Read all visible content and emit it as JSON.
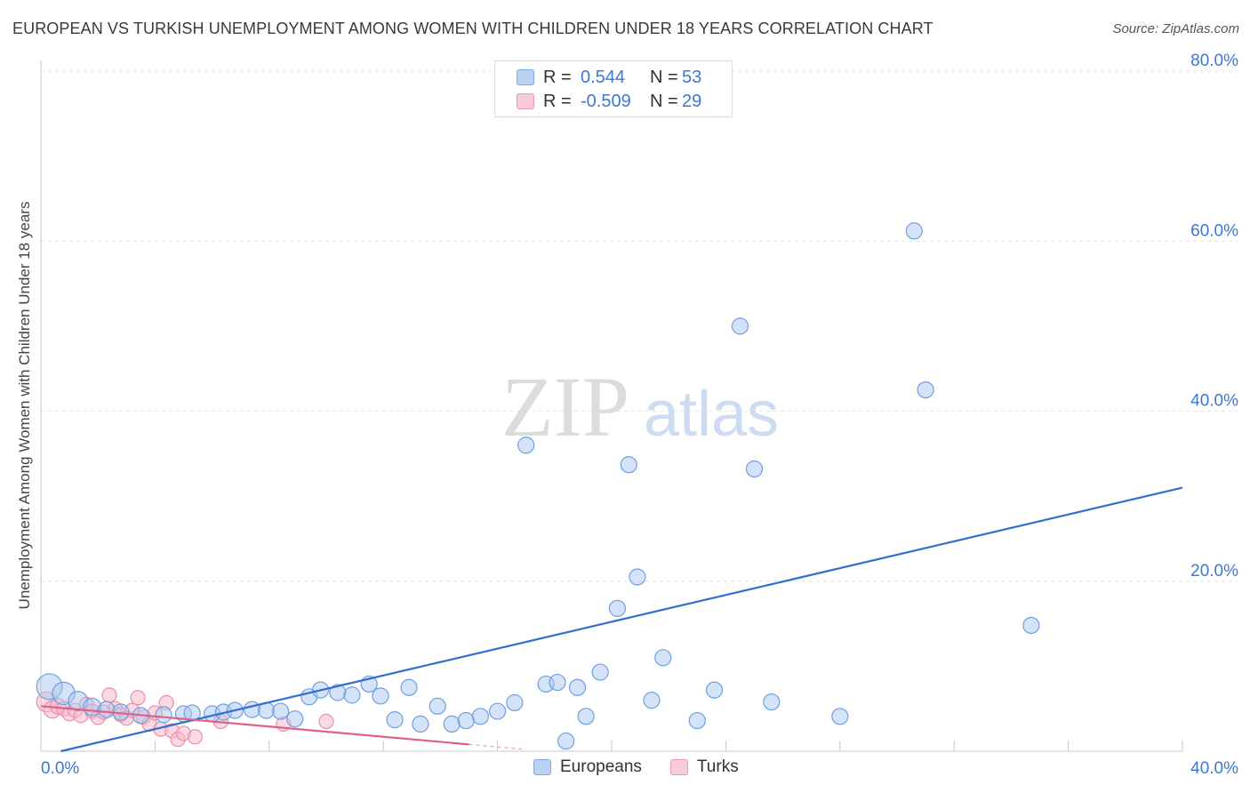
{
  "header": {
    "title": "EUROPEAN VS TURKISH UNEMPLOYMENT AMONG WOMEN WITH CHILDREN UNDER 18 YEARS CORRELATION CHART",
    "source": "Source: ZipAtlas.com"
  },
  "watermark": {
    "zip": "ZIP",
    "atlas": "atlas"
  },
  "legend_top": {
    "rows": [
      {
        "r_label": "R =",
        "r_value": "0.544",
        "n_label": "N =",
        "n_value": "53"
      },
      {
        "r_label": "R =",
        "r_value": "-0.509",
        "n_label": "N =",
        "n_value": "29"
      }
    ]
  },
  "legend_bottom": {
    "europeans": "Europeans",
    "turks": "Turks"
  },
  "colors": {
    "blue_fill": "#a9c8f0",
    "blue_stroke": "#6f9fe0",
    "blue_line": "#2f6fd0",
    "pink_fill": "#f6bccb",
    "pink_stroke": "#ea8fa9",
    "pink_line": "#e0608a",
    "axis_text": "#3a78d4",
    "grid": "#e3e3e3"
  },
  "chart_data": {
    "type": "scatter",
    "title": "EUROPEAN VS TURKISH UNEMPLOYMENT AMONG WOMEN WITH CHILDREN UNDER 18 YEARS CORRELATION CHART",
    "xlabel": "",
    "ylabel": "Unemployment Among Women with Children Under 18 years",
    "xlim": [
      0,
      40
    ],
    "ylim": [
      0,
      80
    ],
    "x_tick_labels": [
      "0.0%",
      "40.0%"
    ],
    "y_tick_labels": [
      "20.0%",
      "40.0%",
      "60.0%",
      "80.0%"
    ],
    "y_ticks": [
      20,
      40,
      60,
      80
    ],
    "grid": true,
    "legend": "top-center",
    "series": [
      {
        "name": "Europeans",
        "r": 0.544,
        "n": 53,
        "trend": {
          "x": [
            0.7,
            40.0
          ],
          "y": [
            0.0,
            31.0
          ]
        },
        "points": [
          [
            0.3,
            7.6,
            1.6
          ],
          [
            0.8,
            6.8,
            1.4
          ],
          [
            1.3,
            5.9,
            1.2
          ],
          [
            1.8,
            5.2,
            1.1
          ],
          [
            2.3,
            4.9,
            1.0
          ],
          [
            2.8,
            4.6,
            1.0
          ],
          [
            3.5,
            4.2,
            1.0
          ],
          [
            4.3,
            4.3,
            1.0
          ],
          [
            5.0,
            4.4,
            1.0
          ],
          [
            5.3,
            4.5,
            1.0
          ],
          [
            6.0,
            4.4,
            1.0
          ],
          [
            6.4,
            4.6,
            1.0
          ],
          [
            6.8,
            4.8,
            1.0
          ],
          [
            7.4,
            4.9,
            1.0
          ],
          [
            7.9,
            4.8,
            1.0
          ],
          [
            8.4,
            4.7,
            1.0
          ],
          [
            8.9,
            3.8,
            1.0
          ],
          [
            9.4,
            6.4,
            1.0
          ],
          [
            9.8,
            7.2,
            1.0
          ],
          [
            10.4,
            6.9,
            1.0
          ],
          [
            10.9,
            6.6,
            1.0
          ],
          [
            11.5,
            7.9,
            1.0
          ],
          [
            11.9,
            6.5,
            1.0
          ],
          [
            12.4,
            3.7,
            1.0
          ],
          [
            12.9,
            7.5,
            1.0
          ],
          [
            13.3,
            3.2,
            1.0
          ],
          [
            13.9,
            5.3,
            1.0
          ],
          [
            14.4,
            3.2,
            1.0
          ],
          [
            14.9,
            3.6,
            1.0
          ],
          [
            15.4,
            4.1,
            1.0
          ],
          [
            16.0,
            4.7,
            1.0
          ],
          [
            16.6,
            5.7,
            1.0
          ],
          [
            17.0,
            36.0,
            1.0
          ],
          [
            17.7,
            7.9,
            1.0
          ],
          [
            18.1,
            8.1,
            1.0
          ],
          [
            18.4,
            1.2,
            1.0
          ],
          [
            18.8,
            7.5,
            1.0
          ],
          [
            19.1,
            4.1,
            1.0
          ],
          [
            19.6,
            9.3,
            1.0
          ],
          [
            20.2,
            16.8,
            1.0
          ],
          [
            20.6,
            33.7,
            1.0
          ],
          [
            20.9,
            20.5,
            1.0
          ],
          [
            21.4,
            6.0,
            1.0
          ],
          [
            21.8,
            11.0,
            1.0
          ],
          [
            23.0,
            3.6,
            1.0
          ],
          [
            23.6,
            7.2,
            1.0
          ],
          [
            24.5,
            50.0,
            1.0
          ],
          [
            25.0,
            33.2,
            1.0
          ],
          [
            25.6,
            5.8,
            1.0
          ],
          [
            28.0,
            4.1,
            1.0
          ],
          [
            30.6,
            61.2,
            1.0
          ],
          [
            31.0,
            42.5,
            1.0
          ],
          [
            34.7,
            14.8,
            1.0
          ]
        ]
      },
      {
        "name": "Turks",
        "r": -0.509,
        "n": 29,
        "trend": {
          "x": [
            0.0,
            15.0
          ],
          "y": [
            5.3,
            0.8
          ]
        },
        "trend_dashed": {
          "x": [
            15.0,
            17.0
          ],
          "y": [
            0.8,
            0.2
          ]
        },
        "points": [
          [
            0.2,
            5.8,
            1.4
          ],
          [
            0.4,
            4.9,
            1.2
          ],
          [
            0.6,
            5.3,
            1.1
          ],
          [
            0.8,
            5.0,
            1.0
          ],
          [
            1.0,
            4.4,
            1.0
          ],
          [
            1.2,
            4.8,
            1.0
          ],
          [
            1.4,
            4.2,
            1.0
          ],
          [
            1.6,
            5.5,
            1.0
          ],
          [
            1.8,
            4.7,
            1.0
          ],
          [
            2.0,
            4.0,
            1.0
          ],
          [
            2.2,
            4.6,
            1.0
          ],
          [
            2.4,
            6.6,
            1.0
          ],
          [
            2.6,
            5.0,
            1.0
          ],
          [
            2.8,
            4.3,
            1.0
          ],
          [
            3.0,
            3.9,
            1.0
          ],
          [
            3.2,
            4.8,
            1.0
          ],
          [
            3.4,
            6.3,
            1.0
          ],
          [
            3.6,
            4.0,
            1.0
          ],
          [
            3.8,
            3.2,
            1.0
          ],
          [
            4.0,
            4.5,
            1.0
          ],
          [
            4.2,
            2.6,
            1.0
          ],
          [
            4.4,
            5.7,
            1.0
          ],
          [
            4.6,
            2.4,
            1.0
          ],
          [
            4.8,
            1.4,
            1.0
          ],
          [
            5.0,
            2.1,
            1.0
          ],
          [
            5.4,
            1.7,
            1.0
          ],
          [
            6.3,
            3.5,
            1.0
          ],
          [
            8.5,
            3.2,
            1.0
          ],
          [
            10.0,
            3.5,
            1.0
          ]
        ]
      }
    ]
  }
}
